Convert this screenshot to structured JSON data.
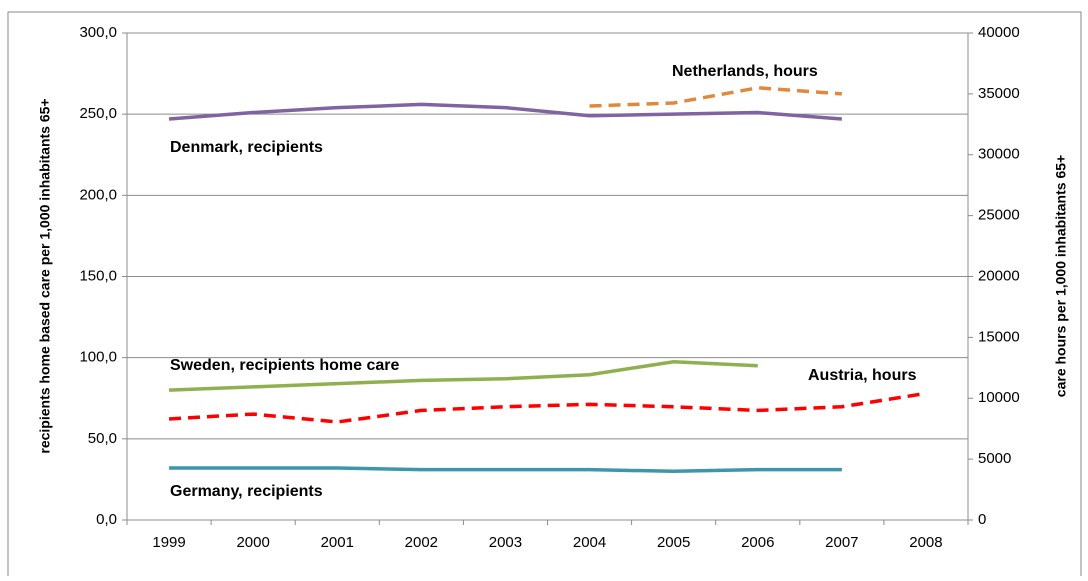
{
  "chart_data": {
    "type": "line",
    "y_label": "recipients home based care  per 1,000 inhabitants 65+",
    "y2_label": "care hours per 1,000 inhabitants 65+",
    "categories": [
      "1999",
      "2000",
      "2001",
      "2002",
      "2003",
      "2004",
      "2005",
      "2006",
      "2007",
      "2008"
    ],
    "series": [
      {
        "name": "Denmark, recipients",
        "color": "#8064a2",
        "linestyle": "solid",
        "values": [
          247,
          251,
          254,
          256,
          254,
          249,
          250,
          251,
          247,
          null
        ]
      },
      {
        "name": "Netherlands, hours",
        "color": "#e0883e",
        "linestyle": "dashed",
        "axis": "y2",
        "values": [
          null,
          null,
          null,
          null,
          null,
          34000,
          34250,
          35500,
          35000,
          null
        ]
      },
      {
        "name": "Sweden, recipients home care",
        "color": "#8fb04f",
        "linestyle": "solid",
        "values": [
          80,
          82,
          84,
          86,
          87,
          89.5,
          97.5,
          95,
          null,
          null
        ]
      },
      {
        "name": "Austria, hours",
        "color": "#ff0000",
        "linestyle": "dashed",
        "axis": "y2",
        "values": [
          8300,
          8700,
          8050,
          9000,
          9300,
          9500,
          9300,
          9000,
          9300,
          10400
        ]
      },
      {
        "name": "Germany, recipients",
        "color": "#3d97ac",
        "linestyle": "solid",
        "values": [
          32,
          32,
          32,
          31,
          31,
          31,
          30,
          31,
          31,
          null
        ]
      }
    ],
    "ylim": [
      0,
      300
    ],
    "yticks": [
      {
        "value": 0,
        "label": "0,0"
      },
      {
        "value": 50,
        "label": "50,0"
      },
      {
        "value": 100,
        "label": "100,0"
      },
      {
        "value": 150,
        "label": "150,0"
      },
      {
        "value": 200,
        "label": "200,0"
      },
      {
        "value": 250,
        "label": "250,0"
      },
      {
        "value": 300,
        "label": "300,0"
      }
    ],
    "y2lim": [
      0,
      40000
    ],
    "y2ticks": [
      0,
      5000,
      10000,
      15000,
      20000,
      25000,
      30000,
      35000,
      40000
    ],
    "grid": true
  }
}
